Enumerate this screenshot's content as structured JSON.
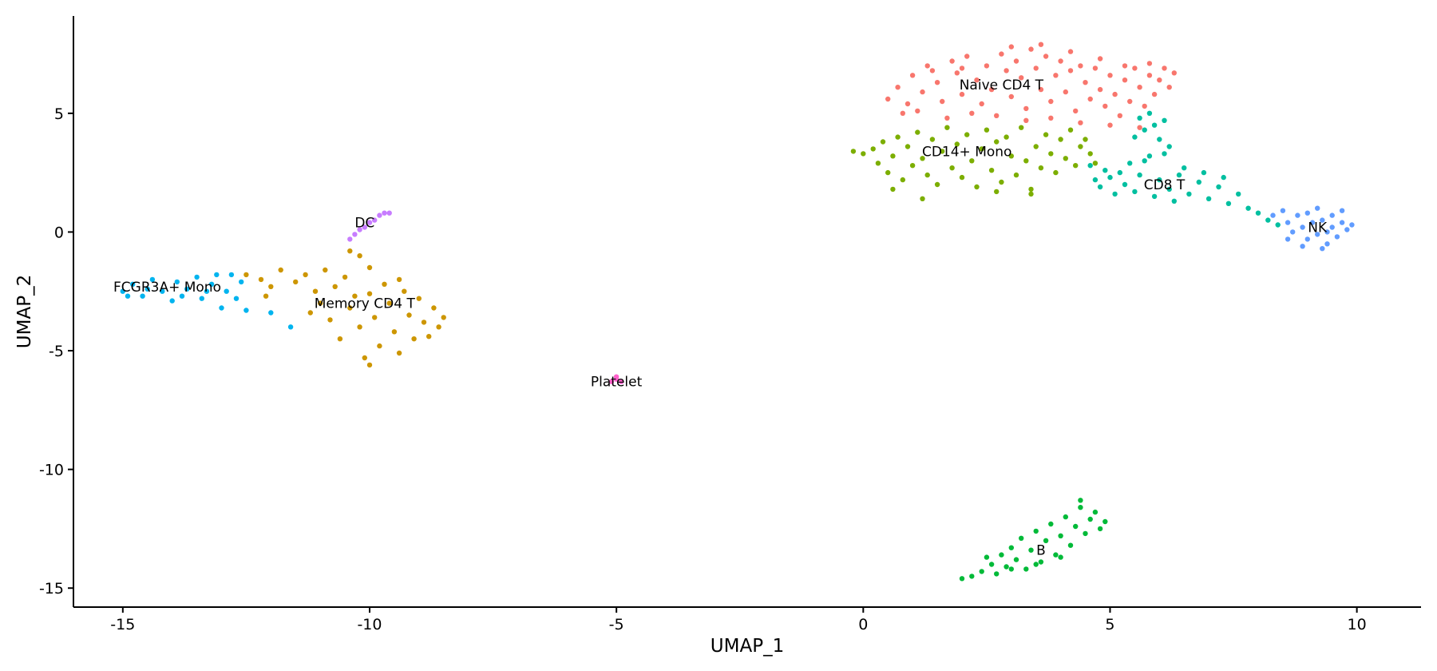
{
  "chart_data": {
    "type": "scatter",
    "title": "",
    "xlabel": "UMAP_1",
    "ylabel": "UMAP_2",
    "xlim": [
      -16.0,
      11.3
    ],
    "ylim": [
      -15.8,
      9.1
    ],
    "x_ticks": [
      -15,
      -10,
      -5,
      0,
      5,
      10
    ],
    "y_ticks": [
      -15,
      -10,
      -5,
      0,
      5
    ],
    "grid": false,
    "legend": "none",
    "series": [
      {
        "name": "Naive CD4 T",
        "color": "#F8766D",
        "label_x": 2.8,
        "label_y": 6.2,
        "points": [
          [
            0.5,
            5.6
          ],
          [
            0.7,
            6.1
          ],
          [
            0.9,
            5.4
          ],
          [
            1.0,
            6.6
          ],
          [
            1.2,
            5.9
          ],
          [
            1.3,
            7.0
          ],
          [
            1.5,
            6.3
          ],
          [
            1.6,
            5.5
          ],
          [
            1.8,
            7.2
          ],
          [
            1.9,
            6.7
          ],
          [
            2.0,
            5.8
          ],
          [
            2.1,
            7.4
          ],
          [
            2.3,
            6.4
          ],
          [
            2.4,
            5.4
          ],
          [
            2.5,
            7.0
          ],
          [
            2.6,
            6.0
          ],
          [
            2.8,
            7.5
          ],
          [
            2.9,
            6.8
          ],
          [
            3.0,
            5.7
          ],
          [
            3.1,
            7.2
          ],
          [
            3.2,
            6.5
          ],
          [
            3.3,
            5.2
          ],
          [
            3.4,
            7.7
          ],
          [
            3.5,
            6.9
          ],
          [
            3.6,
            6.0
          ],
          [
            3.7,
            7.4
          ],
          [
            3.8,
            5.5
          ],
          [
            3.9,
            6.6
          ],
          [
            4.0,
            7.2
          ],
          [
            4.1,
            5.9
          ],
          [
            4.2,
            6.8
          ],
          [
            4.3,
            5.1
          ],
          [
            4.4,
            7.0
          ],
          [
            4.5,
            6.3
          ],
          [
            4.6,
            5.6
          ],
          [
            4.7,
            6.9
          ],
          [
            4.8,
            6.0
          ],
          [
            4.9,
            5.3
          ],
          [
            5.0,
            6.6
          ],
          [
            5.1,
            5.8
          ],
          [
            5.2,
            4.9
          ],
          [
            5.3,
            6.4
          ],
          [
            5.4,
            5.5
          ],
          [
            5.5,
            6.9
          ],
          [
            5.6,
            6.1
          ],
          [
            5.7,
            5.3
          ],
          [
            5.8,
            6.6
          ],
          [
            5.9,
            5.8
          ],
          [
            6.0,
            6.4
          ],
          [
            6.1,
            6.9
          ],
          [
            6.2,
            6.1
          ],
          [
            1.1,
            5.1
          ],
          [
            1.7,
            4.8
          ],
          [
            2.2,
            5.0
          ],
          [
            2.7,
            4.9
          ],
          [
            3.3,
            4.7
          ],
          [
            3.8,
            4.8
          ],
          [
            4.4,
            4.6
          ],
          [
            5.0,
            4.5
          ],
          [
            5.6,
            4.4
          ],
          [
            0.8,
            5.0
          ],
          [
            1.4,
            6.8
          ],
          [
            2.0,
            6.9
          ],
          [
            3.0,
            7.8
          ],
          [
            3.6,
            7.9
          ],
          [
            4.2,
            7.6
          ],
          [
            4.8,
            7.3
          ],
          [
            5.3,
            7.0
          ],
          [
            5.8,
            7.1
          ],
          [
            6.3,
            6.7
          ]
        ]
      },
      {
        "name": "CD14+ Mono",
        "color": "#7CAE00",
        "label_x": 2.1,
        "label_y": 3.4,
        "points": [
          [
            -0.2,
            3.4
          ],
          [
            0.0,
            3.3
          ],
          [
            0.2,
            3.5
          ],
          [
            0.3,
            2.9
          ],
          [
            0.4,
            3.8
          ],
          [
            0.5,
            2.5
          ],
          [
            0.6,
            3.2
          ],
          [
            0.7,
            4.0
          ],
          [
            0.8,
            2.2
          ],
          [
            0.9,
            3.6
          ],
          [
            1.0,
            2.8
          ],
          [
            1.1,
            4.2
          ],
          [
            1.2,
            3.1
          ],
          [
            1.3,
            2.4
          ],
          [
            1.4,
            3.9
          ],
          [
            1.5,
            2.0
          ],
          [
            1.6,
            3.4
          ],
          [
            1.7,
            4.4
          ],
          [
            1.8,
            2.7
          ],
          [
            1.9,
            3.7
          ],
          [
            2.0,
            2.3
          ],
          [
            2.1,
            4.1
          ],
          [
            2.2,
            3.0
          ],
          [
            2.3,
            1.9
          ],
          [
            2.4,
            3.5
          ],
          [
            2.5,
            4.3
          ],
          [
            2.6,
            2.6
          ],
          [
            2.7,
            3.8
          ],
          [
            2.8,
            2.1
          ],
          [
            2.9,
            4.0
          ],
          [
            3.0,
            3.2
          ],
          [
            3.1,
            2.4
          ],
          [
            3.2,
            4.4
          ],
          [
            3.3,
            3.0
          ],
          [
            3.4,
            1.8
          ],
          [
            3.5,
            3.6
          ],
          [
            3.6,
            2.7
          ],
          [
            3.7,
            4.1
          ],
          [
            3.8,
            3.3
          ],
          [
            3.9,
            2.5
          ],
          [
            4.0,
            3.9
          ],
          [
            4.1,
            3.1
          ],
          [
            4.2,
            4.3
          ],
          [
            4.3,
            2.8
          ],
          [
            4.4,
            3.6
          ],
          [
            4.5,
            3.9
          ],
          [
            4.6,
            3.3
          ],
          [
            4.7,
            2.9
          ],
          [
            3.4,
            1.6
          ],
          [
            2.7,
            1.7
          ],
          [
            1.2,
            1.4
          ],
          [
            0.6,
            1.8
          ]
        ]
      },
      {
        "name": "CD8 T",
        "color": "#00BFA0",
        "label_x": 6.1,
        "label_y": 2.0,
        "points": [
          [
            4.6,
            2.8
          ],
          [
            4.7,
            2.2
          ],
          [
            4.8,
            1.9
          ],
          [
            4.9,
            2.6
          ],
          [
            5.0,
            2.3
          ],
          [
            5.1,
            1.6
          ],
          [
            5.2,
            2.5
          ],
          [
            5.3,
            2.0
          ],
          [
            5.4,
            2.9
          ],
          [
            5.5,
            1.7
          ],
          [
            5.6,
            2.4
          ],
          [
            5.7,
            3.0
          ],
          [
            5.5,
            4.0
          ],
          [
            5.6,
            4.8
          ],
          [
            5.7,
            4.3
          ],
          [
            5.8,
            5.0
          ],
          [
            5.9,
            4.5
          ],
          [
            6.0,
            3.9
          ],
          [
            6.1,
            4.7
          ],
          [
            6.2,
            3.6
          ],
          [
            6.0,
            2.2
          ],
          [
            6.2,
            1.8
          ],
          [
            6.4,
            2.4
          ],
          [
            6.6,
            1.6
          ],
          [
            6.8,
            2.1
          ],
          [
            7.0,
            1.4
          ],
          [
            7.2,
            1.9
          ],
          [
            7.4,
            1.2
          ],
          [
            7.6,
            1.6
          ],
          [
            7.8,
            1.0
          ],
          [
            8.0,
            0.8
          ],
          [
            8.2,
            0.5
          ],
          [
            8.4,
            0.3
          ],
          [
            6.5,
            2.7
          ],
          [
            6.9,
            2.5
          ],
          [
            7.3,
            2.3
          ],
          [
            5.9,
            1.5
          ],
          [
            6.3,
            1.3
          ],
          [
            5.8,
            3.2
          ],
          [
            6.1,
            3.3
          ]
        ]
      },
      {
        "name": "NK",
        "color": "#619CFF",
        "label_x": 9.2,
        "label_y": 0.2,
        "points": [
          [
            8.3,
            0.7
          ],
          [
            8.5,
            0.9
          ],
          [
            8.6,
            0.4
          ],
          [
            8.7,
            0.0
          ],
          [
            8.8,
            0.7
          ],
          [
            8.9,
            0.2
          ],
          [
            9.0,
            -0.3
          ],
          [
            9.0,
            0.8
          ],
          [
            9.1,
            0.4
          ],
          [
            9.2,
            -0.1
          ],
          [
            9.2,
            1.0
          ],
          [
            9.3,
            0.5
          ],
          [
            9.4,
            0.0
          ],
          [
            9.4,
            -0.5
          ],
          [
            9.5,
            0.7
          ],
          [
            9.5,
            0.2
          ],
          [
            9.6,
            -0.2
          ],
          [
            9.7,
            0.4
          ],
          [
            9.7,
            0.9
          ],
          [
            9.8,
            0.1
          ],
          [
            9.9,
            0.3
          ],
          [
            8.9,
            -0.6
          ],
          [
            9.3,
            -0.7
          ],
          [
            8.6,
            -0.3
          ]
        ]
      },
      {
        "name": "B",
        "color": "#00BA38",
        "label_x": 3.6,
        "label_y": -13.4,
        "points": [
          [
            2.0,
            -14.6
          ],
          [
            2.2,
            -14.5
          ],
          [
            2.4,
            -14.3
          ],
          [
            2.6,
            -14.0
          ],
          [
            2.7,
            -14.4
          ],
          [
            2.8,
            -13.6
          ],
          [
            2.9,
            -14.1
          ],
          [
            3.0,
            -13.3
          ],
          [
            3.1,
            -13.8
          ],
          [
            3.2,
            -12.9
          ],
          [
            3.3,
            -14.2
          ],
          [
            3.4,
            -13.4
          ],
          [
            3.5,
            -12.6
          ],
          [
            3.6,
            -13.9
          ],
          [
            3.7,
            -13.0
          ],
          [
            3.8,
            -12.3
          ],
          [
            3.9,
            -13.6
          ],
          [
            4.0,
            -12.8
          ],
          [
            4.1,
            -12.0
          ],
          [
            4.2,
            -13.2
          ],
          [
            4.3,
            -12.4
          ],
          [
            4.4,
            -11.6
          ],
          [
            4.5,
            -12.7
          ],
          [
            4.6,
            -12.1
          ],
          [
            4.7,
            -11.8
          ],
          [
            4.8,
            -12.5
          ],
          [
            4.9,
            -12.2
          ],
          [
            3.0,
            -14.2
          ],
          [
            3.5,
            -14.0
          ],
          [
            4.0,
            -13.7
          ],
          [
            2.5,
            -13.7
          ],
          [
            4.4,
            -11.3
          ]
        ]
      },
      {
        "name": "FCGR3A+ Mono",
        "color": "#00B4EF",
        "label_x": -14.1,
        "label_y": -2.3,
        "points": [
          [
            -15.0,
            -2.5
          ],
          [
            -14.8,
            -2.2
          ],
          [
            -14.6,
            -2.7
          ],
          [
            -14.4,
            -2.0
          ],
          [
            -14.2,
            -2.5
          ],
          [
            -14.0,
            -2.9
          ],
          [
            -13.9,
            -2.1
          ],
          [
            -13.7,
            -2.4
          ],
          [
            -13.5,
            -1.9
          ],
          [
            -13.4,
            -2.8
          ],
          [
            -13.2,
            -2.2
          ],
          [
            -13.0,
            -3.2
          ],
          [
            -12.9,
            -2.5
          ],
          [
            -12.8,
            -1.8
          ],
          [
            -12.7,
            -2.8
          ],
          [
            -12.6,
            -2.1
          ],
          [
            -12.5,
            -3.3
          ],
          [
            -14.5,
            -2.4
          ],
          [
            -13.8,
            -2.7
          ],
          [
            -13.3,
            -2.5
          ],
          [
            -14.9,
            -2.7
          ],
          [
            -13.1,
            -1.8
          ],
          [
            -12.0,
            -3.4
          ],
          [
            -11.6,
            -4.0
          ]
        ]
      },
      {
        "name": "Memory CD4 T",
        "color": "#CD9600",
        "label_x": -10.1,
        "label_y": -3.0,
        "points": [
          [
            -12.5,
            -1.8
          ],
          [
            -12.2,
            -2.0
          ],
          [
            -12.0,
            -2.3
          ],
          [
            -11.8,
            -1.6
          ],
          [
            -11.5,
            -2.1
          ],
          [
            -11.3,
            -1.8
          ],
          [
            -11.1,
            -2.5
          ],
          [
            -11.0,
            -3.0
          ],
          [
            -10.9,
            -1.6
          ],
          [
            -10.8,
            -3.7
          ],
          [
            -10.7,
            -2.3
          ],
          [
            -10.6,
            -4.5
          ],
          [
            -10.5,
            -1.9
          ],
          [
            -10.4,
            -3.2
          ],
          [
            -10.3,
            -2.7
          ],
          [
            -10.2,
            -4.0
          ],
          [
            -10.1,
            -5.3
          ],
          [
            -10.0,
            -1.5
          ],
          [
            -10.0,
            -2.6
          ],
          [
            -9.9,
            -3.6
          ],
          [
            -9.8,
            -4.8
          ],
          [
            -9.7,
            -2.2
          ],
          [
            -9.6,
            -3.0
          ],
          [
            -9.5,
            -4.2
          ],
          [
            -9.4,
            -5.1
          ],
          [
            -9.3,
            -2.5
          ],
          [
            -9.2,
            -3.5
          ],
          [
            -9.1,
            -4.5
          ],
          [
            -9.0,
            -2.8
          ],
          [
            -8.9,
            -3.8
          ],
          [
            -8.8,
            -4.4
          ],
          [
            -8.7,
            -3.2
          ],
          [
            -8.6,
            -4.0
          ],
          [
            -8.5,
            -3.6
          ],
          [
            -10.2,
            -1.0
          ],
          [
            -10.4,
            -0.8
          ],
          [
            -10.0,
            -5.6
          ],
          [
            -9.4,
            -2.0
          ],
          [
            -11.2,
            -3.4
          ],
          [
            -12.1,
            -2.7
          ]
        ]
      },
      {
        "name": "DC",
        "color": "#C77CFF",
        "label_x": -10.1,
        "label_y": 0.4,
        "points": [
          [
            -10.3,
            -0.1
          ],
          [
            -10.2,
            0.1
          ],
          [
            -10.1,
            0.2
          ],
          [
            -10.0,
            0.4
          ],
          [
            -9.9,
            0.5
          ],
          [
            -9.8,
            0.7
          ],
          [
            -9.7,
            0.8
          ],
          [
            -10.4,
            -0.3
          ],
          [
            -9.6,
            0.8
          ]
        ]
      },
      {
        "name": "Platelet",
        "color": "#FF61CC",
        "label_x": -5.0,
        "label_y": -6.3,
        "points": [
          [
            -5.0,
            -6.2
          ],
          [
            -4.9,
            -6.3
          ],
          [
            -5.1,
            -6.3
          ],
          [
            -5.0,
            -6.1
          ]
        ]
      }
    ]
  }
}
